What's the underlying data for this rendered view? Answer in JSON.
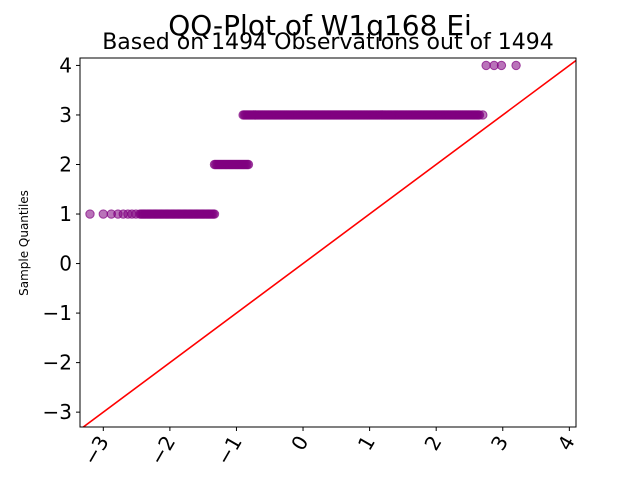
{
  "chart_data": {
    "type": "scatter",
    "title": "QQ-Plot of W1q168 Ei",
    "subtitle": "Based on 1494 Observations out of 1494",
    "xlabel": "",
    "ylabel": "Sample Quantiles",
    "xlim": [
      -3.35,
      4.1
    ],
    "ylim": [
      -3.3,
      4.15
    ],
    "x_ticks": [
      -3,
      -2,
      -1,
      0,
      1,
      2,
      3,
      4
    ],
    "x_tick_labels": [
      "−3",
      "−2",
      "−1",
      "0",
      "1",
      "2",
      "3",
      "4"
    ],
    "y_ticks": [
      -3,
      -2,
      -1,
      0,
      1,
      2,
      3,
      4
    ],
    "y_tick_labels": [
      "−3",
      "−2",
      "−1",
      "0",
      "1",
      "2",
      "3",
      "4"
    ],
    "grid": false,
    "point_color": "#800080",
    "line_color": "#ff0000",
    "reference_line": {
      "slope": 1,
      "intercept": 0
    },
    "series": [
      {
        "values_description": "theoretical vs sample quantiles",
        "points": [
          {
            "x": -3.2,
            "y": 1
          },
          {
            "x": -3.0,
            "y": 1
          },
          {
            "x": -2.88,
            "y": 1
          },
          {
            "x": -2.78,
            "y": 1
          },
          {
            "x": -2.7,
            "y": 1
          },
          {
            "x": -2.63,
            "y": 1
          },
          {
            "x": -2.57,
            "y": 1
          },
          {
            "x": -2.51,
            "y": 1
          },
          {
            "x": -2.45,
            "y": 1,
            "x_end": -1.33,
            "run": true
          },
          {
            "x": -1.33,
            "y": 2,
            "x_end": -0.82,
            "run": true
          },
          {
            "x": -0.9,
            "y": 3,
            "x_end": 2.65,
            "run": true
          },
          {
            "x": 2.7,
            "y": 3
          },
          {
            "x": 2.75,
            "y": 4
          },
          {
            "x": 2.87,
            "y": 4
          },
          {
            "x": 2.98,
            "y": 4
          },
          {
            "x": 3.2,
            "y": 4
          }
        ]
      }
    ]
  }
}
